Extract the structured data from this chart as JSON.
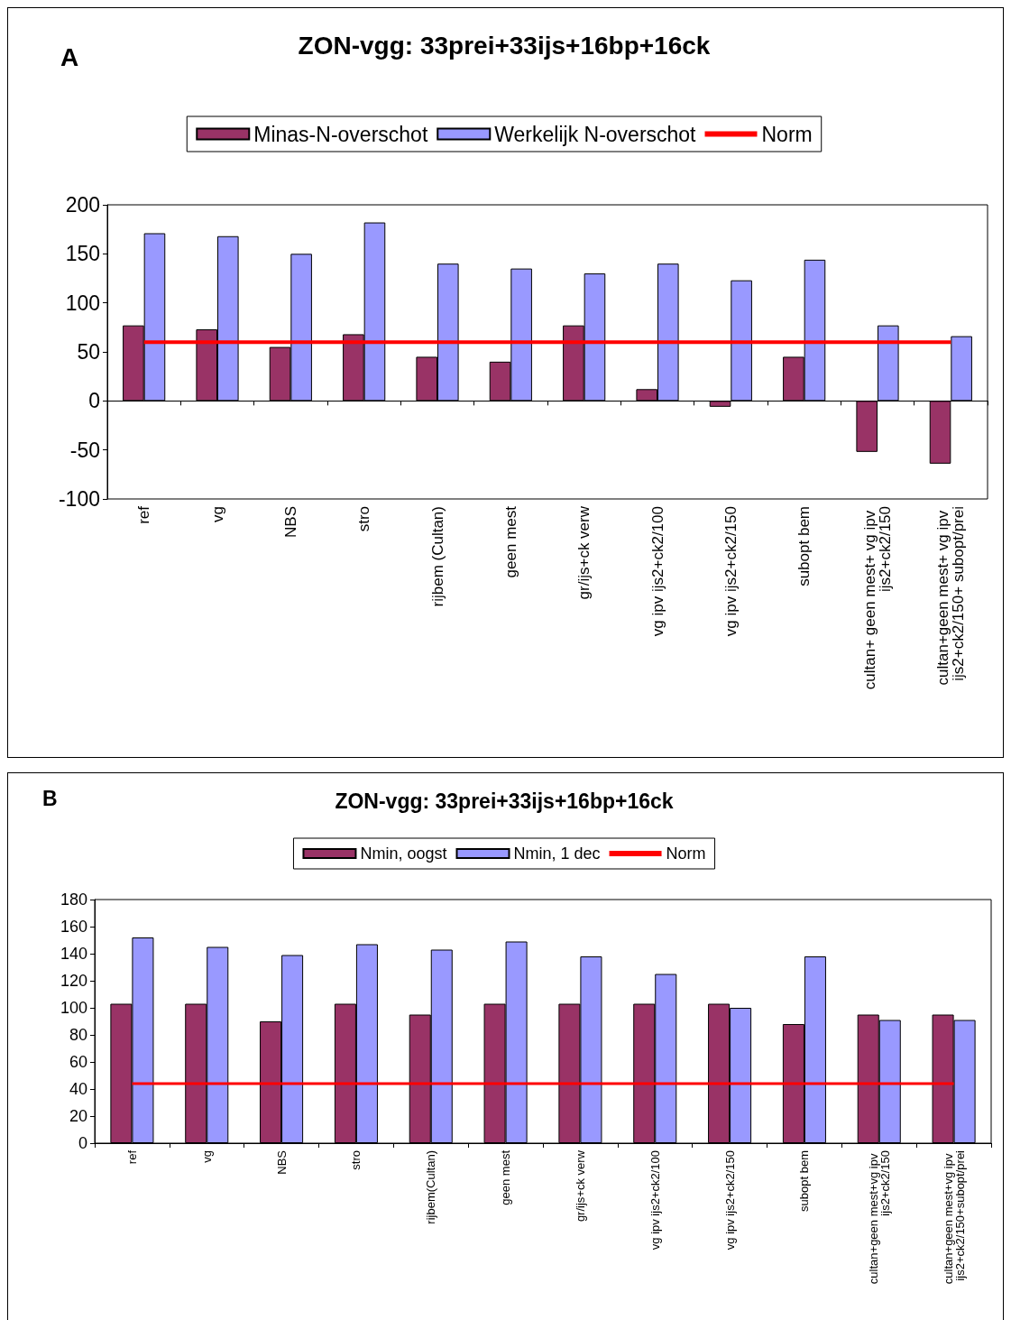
{
  "chart_data": [
    {
      "type": "bar",
      "title": "ZON-vgg: 33prei+33ijs+16bp+16ck",
      "annotations": [
        "A"
      ],
      "categories": [
        "ref",
        "vg",
        "NBS",
        "stro",
        "rijbem (Cultan)",
        "geen mest",
        "gr/ijs+ck verw",
        "vg ipv ijs2+ck2/100",
        "vg ipv ijs2+ck2/150",
        "subopt bem",
        "cultan+ geen mest+ vg ipv ijs2+ck2/150",
        "cultan+geen mest+ vg ipv ijs2+ck2/150+ subopt/prei"
      ],
      "series": [
        {
          "name": "Minas-N-overschot",
          "color": "#993366",
          "values": [
            77,
            73,
            55,
            68,
            45,
            40,
            77,
            12,
            -6,
            45,
            -52,
            -64
          ]
        },
        {
          "name": "Werkelijk N-overschot",
          "color": "#9999ff",
          "values": [
            171,
            168,
            150,
            182,
            140,
            135,
            130,
            140,
            123,
            144,
            77,
            66
          ]
        }
      ],
      "ref_lines": [
        {
          "axis": "y",
          "value": 60,
          "label": "Norm",
          "color": "#ff0000"
        }
      ],
      "ylim": [
        -100,
        200
      ],
      "yticks": [
        -100,
        -50,
        0,
        50,
        100,
        150,
        200
      ],
      "legend": "top"
    },
    {
      "type": "bar",
      "title": "ZON-vgg: 33prei+33ijs+16bp+16ck",
      "annotations": [
        "B"
      ],
      "categories": [
        "ref",
        "vg",
        "NBS",
        "stro",
        "rijbem(Cultan)",
        "geen mest",
        "gr/ijs+ck verw",
        "vg ipv ijs2+ck2/100",
        "vg ipv ijs2+ck2/150",
        "subopt bem",
        "cultan+geen mest+vg ipv ijs2+ck2/150",
        "cultan+geen mest+vg ipv ijs2+ck2/150+subopt/prei"
      ],
      "series": [
        {
          "name": "Nmin, oogst",
          "color": "#993366",
          "values": [
            103,
            103,
            90,
            103,
            95,
            103,
            103,
            103,
            103,
            88,
            95,
            95
          ]
        },
        {
          "name": "Nmin, 1 dec",
          "color": "#9999ff",
          "values": [
            152,
            145,
            139,
            147,
            143,
            149,
            138,
            125,
            100,
            138,
            91,
            91
          ]
        }
      ],
      "ref_lines": [
        {
          "axis": "y",
          "value": 44,
          "label": "Norm",
          "color": "#ff0000"
        }
      ],
      "ylim": [
        0,
        180
      ],
      "yticks": [
        0,
        20,
        40,
        60,
        80,
        100,
        120,
        140,
        160,
        180
      ],
      "legend": "top"
    }
  ]
}
